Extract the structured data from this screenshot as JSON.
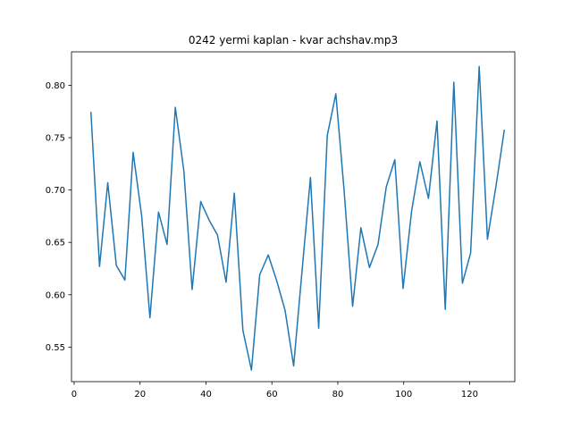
{
  "chart_data": {
    "type": "line",
    "title": "0242 yermi kaplan - kvar achshav.mp3",
    "xlabel": "",
    "ylabel": "",
    "xlim": [
      -0.8,
      133.7
    ],
    "ylim": [
      0.517,
      0.832
    ],
    "xticks": [
      0,
      20,
      40,
      60,
      80,
      100,
      120
    ],
    "yticks": [
      0.55,
      0.6,
      0.65,
      0.7,
      0.75,
      0.8
    ],
    "ytick_labels": [
      "0.55",
      "0.60",
      "0.65",
      "0.70",
      "0.75",
      "0.80"
    ],
    "grid": false,
    "series": [
      {
        "color": "#1f77b4",
        "x": [
          5.1,
          7.7,
          10.2,
          12.8,
          15.4,
          17.9,
          20.5,
          23.0,
          25.6,
          28.2,
          30.7,
          33.3,
          35.8,
          38.4,
          41.0,
          43.5,
          46.1,
          48.6,
          51.2,
          53.8,
          56.3,
          58.9,
          61.4,
          64.0,
          66.6,
          69.1,
          71.7,
          74.2,
          76.8,
          79.4,
          81.9,
          84.5,
          87.0,
          89.6,
          92.2,
          94.7,
          97.3,
          99.8,
          102.4,
          104.9,
          107.5,
          110.1,
          112.6,
          115.2,
          117.8,
          120.3,
          122.9,
          125.4,
          128.0,
          130.5
        ],
        "y": [
          0.774,
          0.627,
          0.707,
          0.628,
          0.614,
          0.736,
          0.675,
          0.578,
          0.679,
          0.648,
          0.779,
          0.718,
          0.605,
          0.689,
          0.671,
          0.657,
          0.612,
          0.697,
          0.566,
          0.528,
          0.619,
          0.638,
          0.614,
          0.585,
          0.532,
          0.621,
          0.712,
          0.568,
          0.752,
          0.792,
          0.7,
          0.589,
          0.664,
          0.626,
          0.648,
          0.703,
          0.729,
          0.606,
          0.68,
          0.727,
          0.692,
          0.766,
          0.586,
          0.803,
          0.611,
          0.64,
          0.818,
          0.653,
          0.704,
          0.757
        ]
      }
    ]
  }
}
